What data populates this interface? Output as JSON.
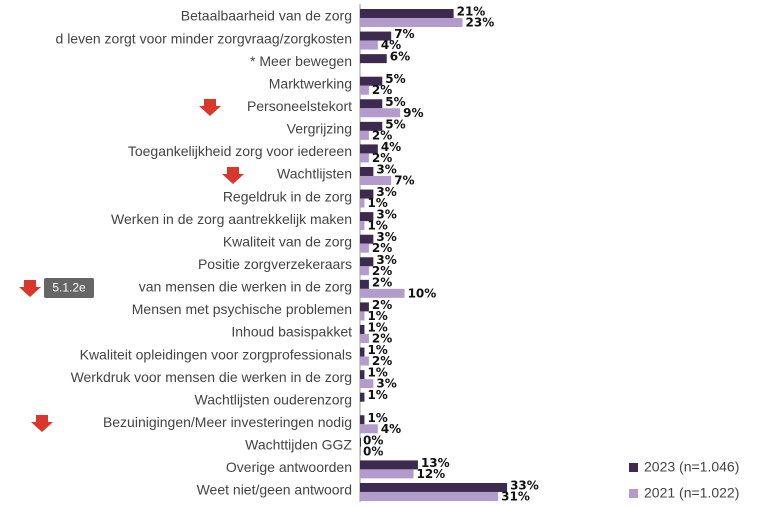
{
  "chart_data": {
    "type": "bar",
    "orientation": "horizontal",
    "categories": [
      "Betaalbaarheid van de zorg",
      "d leven zorgt voor minder zorgvraag/zorgkosten",
      "* Meer bewegen",
      "Marktwerking",
      "Personeelstekort",
      "Vergrijzing",
      "Toegankelijkheid zorg voor iedereen",
      "Wachtlijsten",
      "Regeldruk in de zorg",
      "Werken in de zorg aantrekkelijk maken",
      "Kwaliteit van de zorg",
      "Positie zorgverzekeraars",
      "van mensen die werken in de zorg",
      "Mensen met psychische problemen",
      "Inhoud basispakket",
      "Kwaliteit opleidingen voor zorgprofessionals",
      "Werkdruk voor mensen die werken in de zorg",
      "Wachtlijsten ouderenzorg",
      "Bezuinigingen/Meer investeringen nodig",
      "Wachttijden GGZ",
      "Overige antwoorden",
      "Weet niet/geen antwoord"
    ],
    "series": [
      {
        "name": "2023 (n=1.046)",
        "color": "#3d2a4f",
        "values": [
          21,
          7,
          6,
          5,
          5,
          5,
          4,
          3,
          3,
          3,
          3,
          3,
          2,
          2,
          1,
          1,
          1,
          1,
          1,
          0,
          13,
          33
        ],
        "value_labels": [
          "21%",
          "7%",
          "6%",
          "5%",
          "5%",
          "5%",
          "4%",
          "3%",
          "3%",
          "3%",
          "3%",
          "3%",
          "2%",
          "2%",
          "1%",
          "1%",
          "1%",
          "1%",
          "1%",
          "0%",
          "13%",
          "33%"
        ]
      },
      {
        "name": "2021 (n=1.022)",
        "color": "#b39ccc",
        "values": [
          23,
          4,
          null,
          2,
          9,
          2,
          2,
          7,
          1,
          1,
          2,
          2,
          10,
          1,
          2,
          2,
          3,
          null,
          4,
          0,
          12,
          31
        ],
        "value_labels": [
          "23%",
          "4%",
          null,
          "2%",
          "9%",
          "2%",
          "2%",
          "7%",
          "1%",
          "1%",
          "2%",
          "2%",
          "10%",
          "1%",
          "2%",
          "2%",
          "3%",
          null,
          "4%",
          "0%",
          "12%",
          "31%"
        ]
      }
    ],
    "badge": "5.1.2e",
    "xlim": [
      0,
      35
    ],
    "legend": "bottom-right"
  }
}
